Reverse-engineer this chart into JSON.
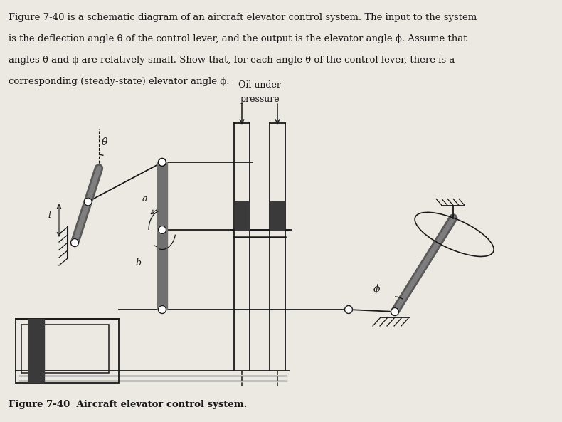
{
  "bg_color": "#ece9e2",
  "text_color": "#1a1a1a",
  "line_color": "#1a1a1a",
  "dark_fill": "#3a3a3a",
  "med_fill": "#666666",
  "title_text": [
    "Figure 7-40 is a schematic diagram of an aircraft elevator control system. The input to the system",
    "is the deflection angle θ of the control lever, and the output is the elevator angle ϕ. Assume that",
    "angles θ and ϕ are relatively small. Show that, for each angle θ of the control lever, there is a",
    "corresponding (steady-state) elevator angle ϕ."
  ],
  "caption": "Figure 7-40  Aircraft elevator control system.",
  "oil_label_1": "Oil under",
  "oil_label_2": "pressure",
  "label_theta": "θ",
  "label_a": "a",
  "label_b": "b",
  "label_phi": "ϕ",
  "label_l": "l",
  "figsize": [
    7.9,
    5.93
  ],
  "dpi": 100
}
